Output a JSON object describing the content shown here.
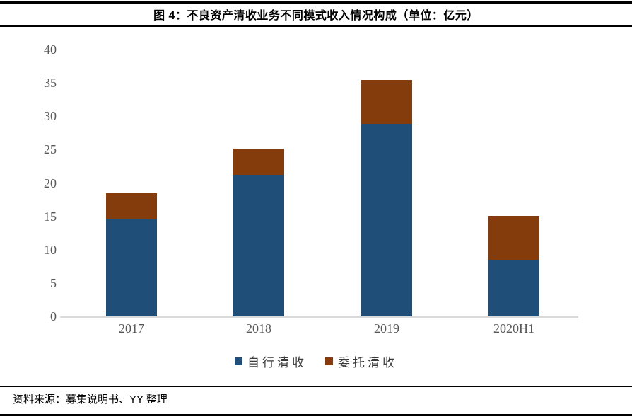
{
  "figure": {
    "title": "图 4：不良资产清收业务不同模式收入情况构成（单位：亿元）",
    "source": "资料来源：募集说明书、YY 整理"
  },
  "chart_data": {
    "type": "bar",
    "stacked": true,
    "title": "图 4：不良资产清收业务不同模式收入情况构成（单位：亿元）",
    "categories": [
      "2017",
      "2018",
      "2019",
      "2020H1"
    ],
    "series": [
      {
        "name": "自行清收",
        "color": "#1F4E79",
        "values": [
          14.5,
          21.2,
          28.9,
          8.5
        ]
      },
      {
        "name": "委托清收",
        "color": "#843C0C",
        "values": [
          4.0,
          3.9,
          6.5,
          6.6
        ]
      }
    ],
    "totals": [
      18.5,
      25.1,
      35.4,
      15.1
    ],
    "ylim": [
      0,
      40
    ],
    "yticks": [
      0,
      5,
      10,
      15,
      20,
      25,
      30,
      35,
      40
    ],
    "xlabel": "",
    "ylabel": "",
    "grid": false,
    "legend_position": "bottom",
    "axis_line_color": "#D9D9D9",
    "tick_label_color": "#595959"
  }
}
